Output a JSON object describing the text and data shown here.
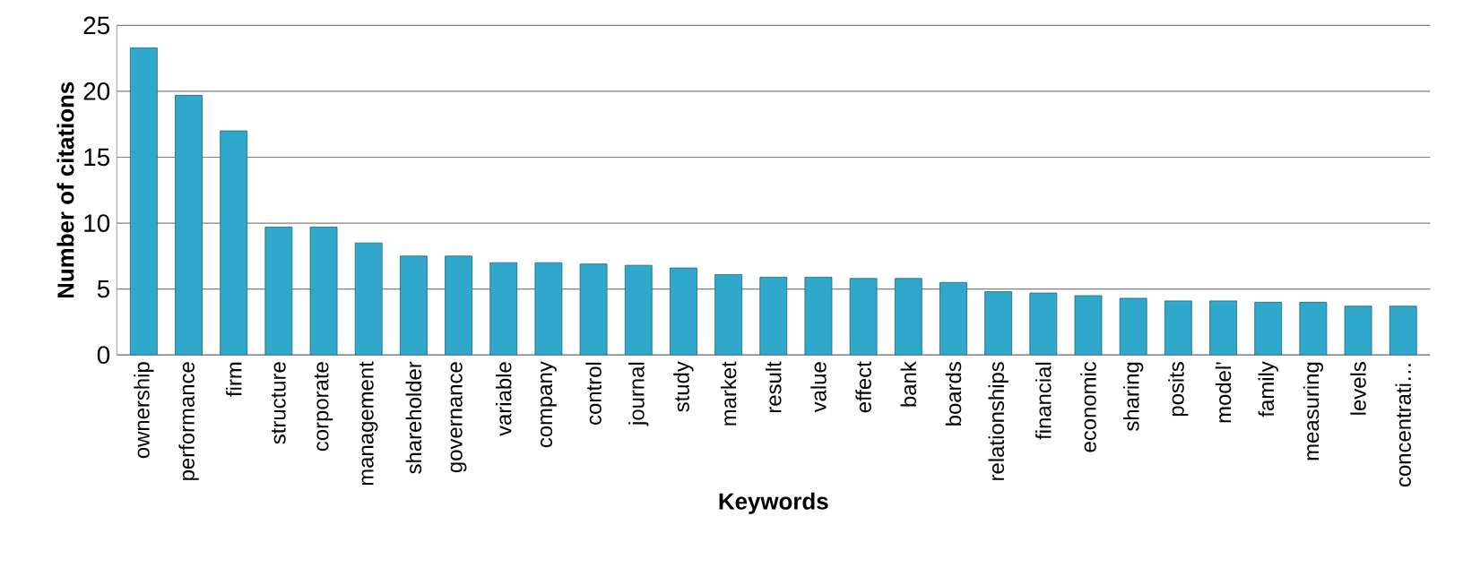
{
  "chart_data": {
    "type": "bar",
    "xlabel": "Keywords",
    "ylabel": "Number of citations",
    "categories": [
      "ownership",
      "performance",
      "firm",
      "structure",
      "corporate",
      "management",
      "shareholder",
      "governance",
      "variable",
      "company",
      "control",
      "journal",
      "study",
      "market",
      "result",
      "value",
      "effect",
      "bank",
      "boards",
      "relationships",
      "financial",
      "economic",
      "sharing",
      "posits",
      "model'",
      "family",
      "measuring",
      "levels",
      "concentrati…"
    ],
    "values": [
      23.3,
      19.7,
      17.0,
      9.7,
      9.7,
      8.5,
      7.5,
      7.5,
      7.0,
      7.0,
      6.9,
      6.8,
      6.6,
      6.1,
      5.9,
      5.9,
      5.8,
      5.8,
      5.5,
      4.8,
      4.7,
      4.5,
      4.3,
      4.1,
      4.1,
      4.0,
      4.0,
      3.7,
      3.7
    ],
    "color": "#2fa8cc",
    "ylim": [
      0,
      25
    ],
    "yticks": [
      0,
      5,
      10,
      15,
      20,
      25
    ],
    "grid": "y"
  }
}
